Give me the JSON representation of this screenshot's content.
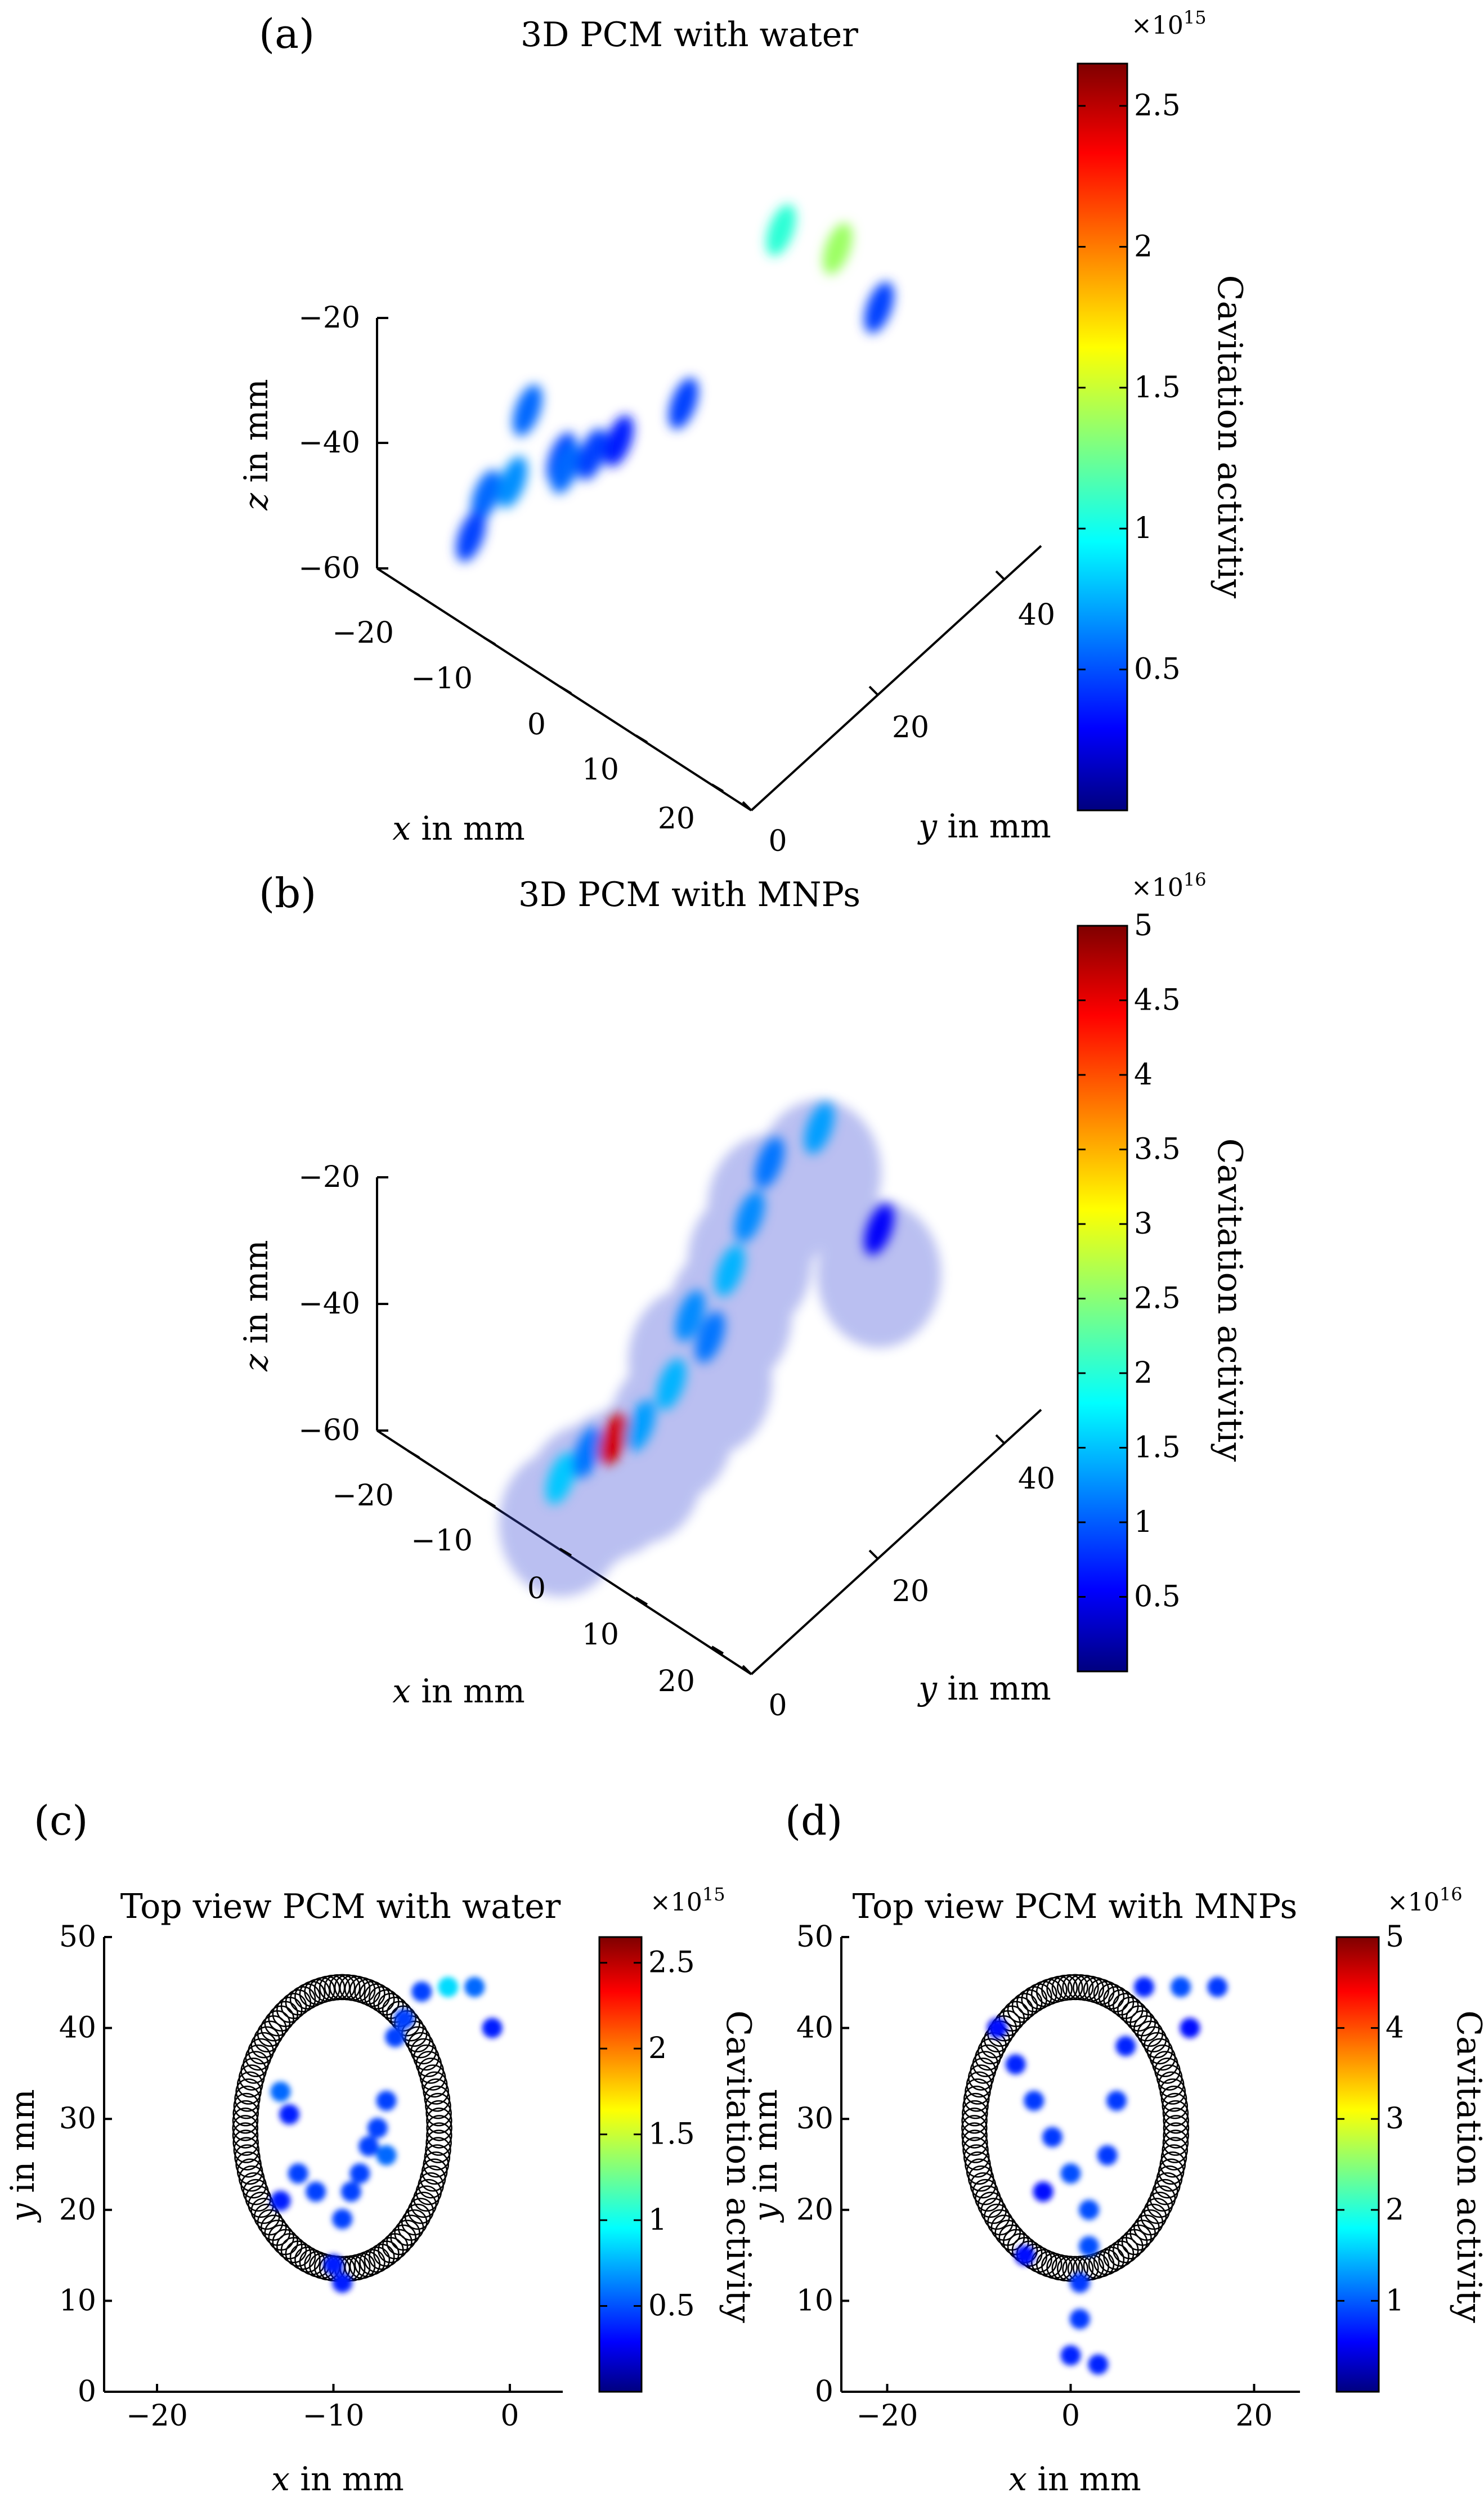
{
  "chart_data": [
    {
      "panel": "(a)",
      "type": "scatter3d",
      "title": "3D PCM with water",
      "xlabel": "x in mm",
      "ylabel": "y in mm",
      "zlabel": "z in mm",
      "x_ticks": [
        "−20",
        "−10",
        "0",
        "10",
        "20"
      ],
      "y_ticks": [
        "0",
        "20",
        "40"
      ],
      "z_ticks": [
        "−20",
        "−40",
        "−60"
      ],
      "colorbar": {
        "label": "Cavitation activitiy",
        "multiplier": "×10",
        "exponent": "15",
        "ticks": [
          "0.5",
          "1",
          "1.5",
          "2",
          "2.5"
        ],
        "range": [
          0,
          2.65
        ]
      },
      "blobs": [
        {
          "x": -8,
          "y": 4,
          "z": -25,
          "v": 0.6
        },
        {
          "x": -5,
          "y": 6,
          "z": -32,
          "v": 0.5
        },
        {
          "x": -12,
          "y": 2,
          "z": -40,
          "v": 0.6
        },
        {
          "x": -10,
          "y": 4,
          "z": -38,
          "v": 0.7
        },
        {
          "x": -6,
          "y": 8,
          "z": -36,
          "v": 0.6
        },
        {
          "x": -4,
          "y": 10,
          "z": -34,
          "v": 0.5
        },
        {
          "x": -14,
          "y": 2,
          "z": -48,
          "v": 0.5
        },
        {
          "x": -2,
          "y": 12,
          "z": -32,
          "v": 0.4
        },
        {
          "x": 2,
          "y": 18,
          "z": -28,
          "v": 0.5
        },
        {
          "x": -2,
          "y": 40,
          "z": -22,
          "v": 1.1
        },
        {
          "x": 4,
          "y": 42,
          "z": -22,
          "v": 1.4
        },
        {
          "x": 8,
          "y": 44,
          "z": -30,
          "v": 0.5
        }
      ]
    },
    {
      "panel": "(b)",
      "type": "scatter3d",
      "title": "3D PCM with MNPs",
      "xlabel": "x in mm",
      "ylabel": "y in mm",
      "zlabel": "z in mm",
      "x_ticks": [
        "−20",
        "−10",
        "0",
        "10",
        "20"
      ],
      "y_ticks": [
        "0",
        "20",
        "40"
      ],
      "z_ticks": [
        "−20",
        "−40",
        "−60"
      ],
      "colorbar": {
        "label": "Cavitation activitiy",
        "multiplier": "×10",
        "exponent": "16",
        "ticks": [
          "0.5",
          "1",
          "1.5",
          "2",
          "2.5",
          "3",
          "3.5",
          "4",
          "4.5",
          "5"
        ],
        "range": [
          0,
          5
        ]
      },
      "blobs": [
        {
          "x": -2,
          "y": 2,
          "z": -52,
          "v": 1.6
        },
        {
          "x": 0,
          "y": 4,
          "z": -48,
          "v": 1.2
        },
        {
          "x": 2,
          "y": 6,
          "z": -46,
          "v": 4.6
        },
        {
          "x": 4,
          "y": 8,
          "z": -44,
          "v": 1.4
        },
        {
          "x": 5,
          "y": 12,
          "z": -40,
          "v": 1.5
        },
        {
          "x": 6,
          "y": 14,
          "z": -30,
          "v": 1.3
        },
        {
          "x": 4,
          "y": 20,
          "z": -40,
          "v": 1.2
        },
        {
          "x": 2,
          "y": 26,
          "z": -36,
          "v": 1.5
        },
        {
          "x": 0,
          "y": 32,
          "z": -34,
          "v": 1.3
        },
        {
          "x": -2,
          "y": 38,
          "z": -32,
          "v": 1.2
        },
        {
          "x": 0,
          "y": 44,
          "z": -30,
          "v": 1.4
        },
        {
          "x": 8,
          "y": 44,
          "z": -40,
          "v": 0.6
        }
      ]
    },
    {
      "panel": "(c)",
      "type": "scatter",
      "title": "Top view PCM with water",
      "xlabel": "x in mm",
      "ylabel": "y in mm",
      "xlim": [
        -23,
        3
      ],
      "ylim": [
        0,
        50
      ],
      "x_ticks": [
        "−20",
        "−10",
        "0"
      ],
      "y_ticks": [
        "0",
        "10",
        "20",
        "30",
        "40",
        "50"
      ],
      "ellipse": {
        "cx": -9.5,
        "cy": 29,
        "rx": 5.5,
        "ry": 15.5
      },
      "colorbar": {
        "label": "Cavitation activity",
        "multiplier": "×10",
        "exponent": "15",
        "ticks": [
          "0.5",
          "1",
          "1.5",
          "2",
          "2.5"
        ],
        "range": [
          0,
          2.65
        ]
      },
      "points": [
        {
          "x": -3.5,
          "y": 44.5,
          "v": 0.9
        },
        {
          "x": -2,
          "y": 44.5,
          "v": 0.6
        },
        {
          "x": -5,
          "y": 44,
          "v": 0.5
        },
        {
          "x": -1,
          "y": 40,
          "v": 0.4
        },
        {
          "x": -6,
          "y": 41,
          "v": 0.5
        },
        {
          "x": -6.5,
          "y": 39,
          "v": 0.5
        },
        {
          "x": -13,
          "y": 33,
          "v": 0.6
        },
        {
          "x": -12.5,
          "y": 30.5,
          "v": 0.4
        },
        {
          "x": -7,
          "y": 32,
          "v": 0.5
        },
        {
          "x": -7.5,
          "y": 29,
          "v": 0.5
        },
        {
          "x": -8,
          "y": 27,
          "v": 0.5
        },
        {
          "x": -7,
          "y": 26,
          "v": 0.6
        },
        {
          "x": -12,
          "y": 24,
          "v": 0.5
        },
        {
          "x": -11,
          "y": 22,
          "v": 0.5
        },
        {
          "x": -9,
          "y": 22,
          "v": 0.5
        },
        {
          "x": -8.5,
          "y": 24,
          "v": 0.5
        },
        {
          "x": -13,
          "y": 21,
          "v": 0.4
        },
        {
          "x": -9.5,
          "y": 19,
          "v": 0.5
        },
        {
          "x": -10,
          "y": 14,
          "v": 0.4
        },
        {
          "x": -9.5,
          "y": 12,
          "v": 0.4
        }
      ]
    },
    {
      "panel": "(d)",
      "type": "scatter",
      "title": "Top view PCM with MNPs",
      "xlabel": "x in mm",
      "ylabel": "y in mm",
      "xlim": [
        -25,
        25
      ],
      "ylim": [
        0,
        50
      ],
      "x_ticks": [
        "−20",
        "0",
        "20"
      ],
      "y_ticks": [
        "0",
        "10",
        "20",
        "30",
        "40",
        "50"
      ],
      "ellipse": {
        "cx": 0.5,
        "cy": 29,
        "rx": 11,
        "ry": 15.5
      },
      "colorbar": {
        "label": "Cavitation activity",
        "multiplier": "×10",
        "exponent": "16",
        "ticks": [
          "1",
          "2",
          "3",
          "4",
          "5"
        ],
        "range": [
          0,
          5
        ]
      },
      "points": [
        {
          "x": 12,
          "y": 44.5,
          "v": 1.0
        },
        {
          "x": 16,
          "y": 44.5,
          "v": 0.9
        },
        {
          "x": 8,
          "y": 44.5,
          "v": 0.8
        },
        {
          "x": -8,
          "y": 40,
          "v": 0.7
        },
        {
          "x": 13,
          "y": 40,
          "v": 0.7
        },
        {
          "x": -6,
          "y": 36,
          "v": 0.8
        },
        {
          "x": -4,
          "y": 32,
          "v": 0.9
        },
        {
          "x": -2,
          "y": 28,
          "v": 0.9
        },
        {
          "x": 0,
          "y": 24,
          "v": 1.0
        },
        {
          "x": 2,
          "y": 20,
          "v": 1.0
        },
        {
          "x": 6,
          "y": 38,
          "v": 0.8
        },
        {
          "x": 5,
          "y": 32,
          "v": 0.9
        },
        {
          "x": 4,
          "y": 26,
          "v": 0.9
        },
        {
          "x": 2,
          "y": 16,
          "v": 1.0
        },
        {
          "x": 1,
          "y": 12,
          "v": 0.9
        },
        {
          "x": 1,
          "y": 8,
          "v": 0.9
        },
        {
          "x": 0,
          "y": 4,
          "v": 0.8
        },
        {
          "x": 3,
          "y": 3,
          "v": 0.8
        },
        {
          "x": -3,
          "y": 22,
          "v": 0.7
        },
        {
          "x": -5,
          "y": 15,
          "v": 0.7
        }
      ]
    }
  ]
}
